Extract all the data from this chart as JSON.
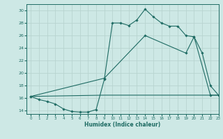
{
  "title": "",
  "xlabel": "Humidex (Indice chaleur)",
  "xlim": [
    -0.5,
    23
  ],
  "ylim": [
    13.5,
    31
  ],
  "yticks": [
    14,
    16,
    18,
    20,
    22,
    24,
    26,
    28,
    30
  ],
  "xticks": [
    0,
    1,
    2,
    3,
    4,
    5,
    6,
    7,
    8,
    9,
    10,
    11,
    12,
    13,
    14,
    15,
    16,
    17,
    18,
    19,
    20,
    21,
    22,
    23
  ],
  "bg_color": "#cde8e5",
  "line_color": "#1e6b63",
  "grid_color": "#b8d4d0",
  "line1_x": [
    0,
    1,
    2,
    3,
    4,
    5,
    6,
    7,
    8,
    9,
    10,
    11,
    12,
    13,
    14,
    15,
    16,
    17,
    18,
    19,
    20,
    21,
    22,
    23
  ],
  "line1_y": [
    16.3,
    15.8,
    15.5,
    15.1,
    14.3,
    13.9,
    13.8,
    13.8,
    14.2,
    19.0,
    28.0,
    28.0,
    27.6,
    28.5,
    30.2,
    29.0,
    28.0,
    27.5,
    27.5,
    26.0,
    25.8,
    23.2,
    18.0,
    16.5
  ],
  "line2_x": [
    0,
    9,
    14,
    19,
    20,
    22,
    23
  ],
  "line2_y": [
    16.3,
    19.2,
    26.0,
    23.2,
    25.8,
    16.5,
    16.5
  ],
  "line3_x": [
    0,
    9,
    19,
    23
  ],
  "line3_y": [
    16.3,
    16.5,
    16.5,
    16.5
  ]
}
